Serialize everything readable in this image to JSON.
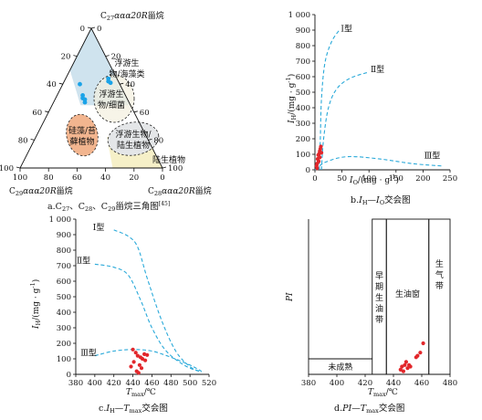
{
  "colors": {
    "red_point": "#e2272b",
    "blue_point": "#1aa3e8",
    "curve": "#29a9d9",
    "fill_blue": "#cfe3ee",
    "fill_orange": "#f2b58f",
    "fill_yellow": "#f6f0c8",
    "fill_gray": "#e4e6e8"
  },
  "chart_data": [
    {
      "id": "a",
      "type": "scatter",
      "subtype": "ternary",
      "caption_pre": "a.C",
      "caption_s1": "27",
      "caption_mid1": "、C",
      "caption_s2": "28",
      "caption_mid2": "、C",
      "caption_s3": "29",
      "caption_post": "甾烷三角图",
      "caption_ref": "[45]",
      "apex_top": {
        "pre": "C",
        "sub": "27",
        "italic": "ααα20R",
        "post": "甾烷"
      },
      "apex_left": {
        "pre": "C",
        "sub": "29",
        "italic": "ααα20R",
        "post": "甾烷"
      },
      "apex_right": {
        "pre": "C",
        "sub": "28",
        "italic": "ααα20R",
        "post": "甾烷"
      },
      "ticks": [
        "0",
        "20",
        "40",
        "60",
        "80",
        "100"
      ],
      "regions": [
        {
          "name": "plankton_seaweed",
          "lines": [
            "浮游生",
            "物/海藻类"
          ]
        },
        {
          "name": "plankton_bacteria",
          "lines": [
            "浮游生",
            "物/细菌"
          ]
        },
        {
          "name": "diatom_bryophyte",
          "lines": [
            "硅藻/苔",
            "藓植物"
          ]
        },
        {
          "name": "plankton_terrestrial",
          "lines": [
            "浮游生物/",
            "陆生植物"
          ]
        },
        {
          "name": "terrestrial",
          "lines": [
            "陆生植物"
          ]
        }
      ],
      "points": [
        {
          "c27": 62,
          "c28": 31,
          "c29": 7
        },
        {
          "c27": 64,
          "c28": 30,
          "c29": 6
        },
        {
          "c27": 61,
          "c28": 33,
          "c29": 6
        },
        {
          "c27": 60,
          "c28": 12,
          "c29": 28
        },
        {
          "c27": 52,
          "c28": 18,
          "c29": 30
        },
        {
          "c27": 50,
          "c28": 19,
          "c29": 31
        },
        {
          "c27": 49,
          "c28": 21,
          "c29": 30
        },
        {
          "c27": 47,
          "c28": 22,
          "c29": 31
        }
      ]
    },
    {
      "id": "b",
      "type": "scatter",
      "caption_pre": "b.",
      "caption_var1": "I",
      "caption_sub1": "H",
      "caption_mid": "—",
      "caption_var2": "I",
      "caption_sub2": "O",
      "caption_post": "交会图",
      "xlabel": "I",
      "xlabel_sub": "O",
      "xlabel_unit": "/(mg · g",
      "xlabel_sup": "-1",
      "xlabel_end": ")",
      "ylabel": "I",
      "ylabel_sub": "H",
      "ylabel_unit": "/(mg · g",
      "ylabel_sup": "-1",
      "ylabel_end": ")",
      "xlim": [
        0,
        250
      ],
      "ylim": [
        0,
        1000
      ],
      "xticks": [
        "0",
        "50",
        "100",
        "150",
        "200",
        "250"
      ],
      "yticks": [
        "0",
        "100",
        "200",
        "300",
        "400",
        "500",
        "600",
        "700",
        "800",
        "900",
        "1 000"
      ],
      "series": [
        {
          "name": "Ⅰ型",
          "points": [
            [
              8,
              0
            ],
            [
              10,
              200
            ],
            [
              12,
              450
            ],
            [
              18,
              680
            ],
            [
              30,
              820
            ],
            [
              45,
              900
            ]
          ]
        },
        {
          "name": "Ⅱ型",
          "points": [
            [
              12,
              0
            ],
            [
              16,
              200
            ],
            [
              25,
              400
            ],
            [
              40,
              520
            ],
            [
              65,
              590
            ],
            [
              100,
              630
            ]
          ]
        },
        {
          "name": "Ⅲ型",
          "points": [
            [
              0,
              0
            ],
            [
              20,
              50
            ],
            [
              60,
              85
            ],
            [
              120,
              70
            ],
            [
              180,
              40
            ],
            [
              235,
              25
            ]
          ]
        }
      ],
      "points": [
        [
          3,
          25
        ],
        [
          4,
          40
        ],
        [
          5,
          70
        ],
        [
          6,
          95
        ],
        [
          8,
          105
        ],
        [
          9,
          120
        ],
        [
          10,
          135
        ],
        [
          11,
          150
        ],
        [
          12,
          110
        ],
        [
          4,
          10
        ],
        [
          7,
          55
        ],
        [
          9,
          80
        ]
      ]
    },
    {
      "id": "c",
      "type": "scatter",
      "caption_pre": "c.",
      "caption_var1": "I",
      "caption_sub1": "H",
      "caption_mid": "—",
      "caption_var2": "T",
      "caption_sub2": "max",
      "caption_post": "交会图",
      "xlabel": "T",
      "xlabel_sub": "max",
      "xlabel_end": "/℃",
      "ylabel": "I",
      "ylabel_sub": "H",
      "ylabel_unit": "/(mg · g",
      "ylabel_sup": "-1",
      "ylabel_end": ")",
      "xlim": [
        380,
        520
      ],
      "ylim": [
        0,
        1000
      ],
      "xticks": [
        "380",
        "400",
        "420",
        "440",
        "460",
        "480",
        "500",
        "520"
      ],
      "yticks": [
        "0",
        "100",
        "200",
        "300",
        "400",
        "500",
        "600",
        "700",
        "800",
        "900",
        "1 000"
      ],
      "series": [
        {
          "name": "Ⅰ型",
          "points": [
            [
              420,
              930
            ],
            [
              435,
              890
            ],
            [
              445,
              820
            ],
            [
              455,
              620
            ],
            [
              470,
              350
            ],
            [
              485,
              150
            ],
            [
              500,
              50
            ],
            [
              512,
              15
            ]
          ]
        },
        {
          "name": "Ⅱ型",
          "points": [
            [
              400,
              710
            ],
            [
              420,
              690
            ],
            [
              435,
              640
            ],
            [
              448,
              480
            ],
            [
              460,
              300
            ],
            [
              475,
              150
            ],
            [
              495,
              55
            ],
            [
              512,
              15
            ]
          ]
        },
        {
          "name": "Ⅲ型",
          "points": [
            [
              400,
              120
            ],
            [
              420,
              150
            ],
            [
              440,
              160
            ],
            [
              460,
              150
            ],
            [
              480,
              110
            ],
            [
              500,
              60
            ],
            [
              512,
              20
            ]
          ]
        }
      ],
      "points": [
        [
          440,
          160
        ],
        [
          443,
          140
        ],
        [
          445,
          120
        ],
        [
          448,
          110
        ],
        [
          450,
          100
        ],
        [
          452,
          130
        ],
        [
          455,
          125
        ],
        [
          447,
          60
        ],
        [
          449,
          40
        ],
        [
          444,
          20
        ],
        [
          446,
          10
        ],
        [
          441,
          80
        ],
        [
          438,
          50
        ],
        [
          453,
          90
        ]
      ]
    },
    {
      "id": "d",
      "type": "scatter",
      "caption_pre": "d.",
      "caption_var1": "PI",
      "caption_mid": "—",
      "caption_var2": "T",
      "caption_sub2": "max",
      "caption_post": "交会图",
      "xlabel": "T",
      "xlabel_sub": "max",
      "xlabel_end": "/℃",
      "ylabel": "PI",
      "xlim": [
        380,
        480
      ],
      "ylim": [
        0,
        1
      ],
      "xticks": [
        "380",
        "400",
        "420",
        "440",
        "460",
        "480"
      ],
      "zones": [
        {
          "label": "未成熟",
          "x0": 380,
          "x1": 425,
          "ytop": 0.1
        },
        {
          "label_chars": [
            "早",
            "期",
            "生",
            "油",
            "带"
          ],
          "x0": 425,
          "x1": 435
        },
        {
          "label": "生油窗",
          "x0": 435,
          "x1": 465
        },
        {
          "label_chars": [
            "生",
            "气",
            "带"
          ],
          "x0": 465,
          "x1": 480
        }
      ],
      "points": [
        [
          445,
          0.03
        ],
        [
          448,
          0.06
        ],
        [
          450,
          0.04
        ],
        [
          447,
          0.02
        ],
        [
          452,
          0.05
        ],
        [
          449,
          0.08
        ],
        [
          446,
          0.05
        ],
        [
          457,
          0.12
        ],
        [
          459,
          0.14
        ],
        [
          461,
          0.2
        ],
        [
          456,
          0.11
        ],
        [
          451,
          0.06
        ]
      ]
    }
  ]
}
